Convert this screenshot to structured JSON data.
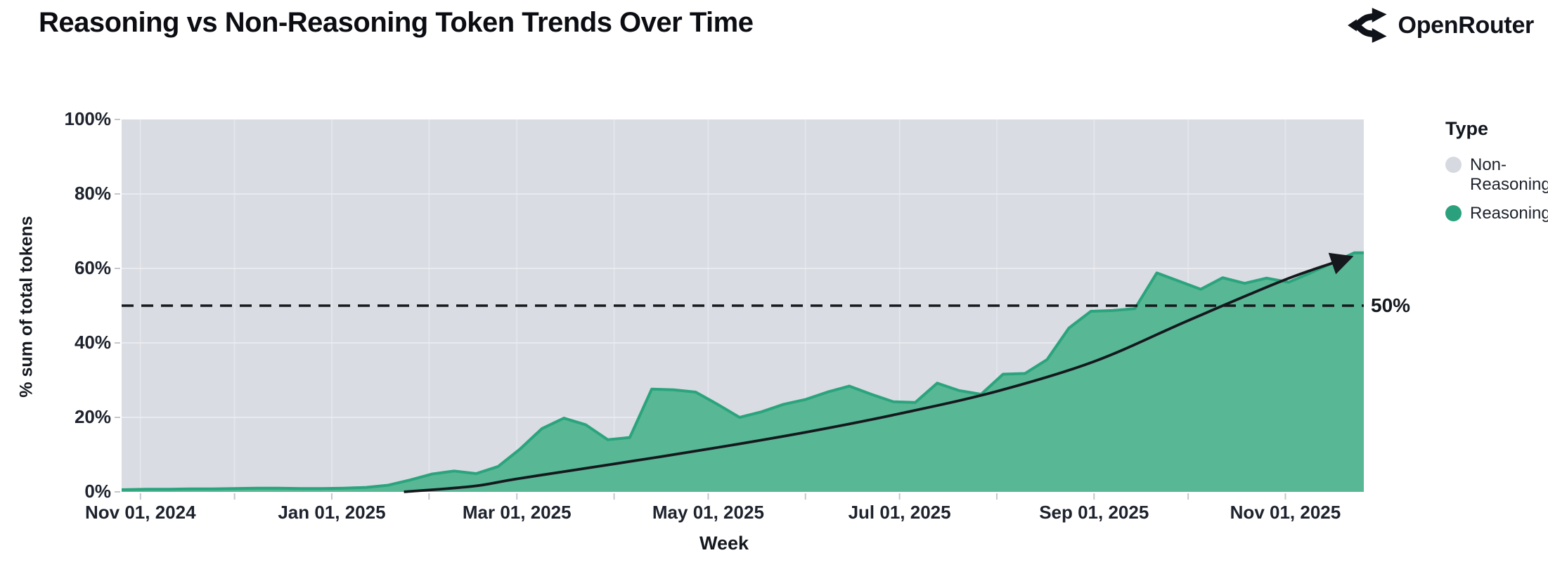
{
  "header": {
    "title": "Reasoning vs Non-Reasoning Token Trends Over Time",
    "brand": "OpenRouter"
  },
  "chart_data": {
    "type": "area",
    "stacked_percent": true,
    "title": "Reasoning vs Non-Reasoning Token Trends Over Time",
    "xlabel": "Week",
    "ylabel": "% sum of total tokens",
    "ylim": [
      0,
      100
    ],
    "x_domain": [
      "2024-10-26",
      "2025-11-26"
    ],
    "grid": true,
    "legend_position": "right",
    "legend": {
      "title": "Type",
      "entries": [
        {
          "label": "Non-Reasoning",
          "color": "#d6d9e0"
        },
        {
          "label": "Reasoning",
          "color": "#2aa17c"
        }
      ]
    },
    "y_ticks": [
      {
        "label": "0%",
        "value": 0
      },
      {
        "label": "20%",
        "value": 20
      },
      {
        "label": "40%",
        "value": 40
      },
      {
        "label": "60%",
        "value": 60
      },
      {
        "label": "80%",
        "value": 80
      },
      {
        "label": "100%",
        "value": 100
      }
    ],
    "x_ticks": [
      {
        "label": "Nov 01, 2024",
        "date": "2024-11-01"
      },
      {
        "label": "Jan 01, 2025",
        "date": "2025-01-01"
      },
      {
        "label": "Mar 01, 2025",
        "date": "2025-03-01"
      },
      {
        "label": "May 01, 2025",
        "date": "2025-05-01"
      },
      {
        "label": "Jul 01, 2025",
        "date": "2025-07-01"
      },
      {
        "label": "Sep 01, 2025",
        "date": "2025-09-01"
      },
      {
        "label": "Nov 01, 2025",
        "date": "2025-11-01"
      }
    ],
    "minor_tick_months": [
      "2024-11-01",
      "2024-12-01",
      "2025-01-01",
      "2025-02-01",
      "2025-03-01",
      "2025-04-01",
      "2025-05-01",
      "2025-06-01",
      "2025-07-01",
      "2025-08-01",
      "2025-09-01",
      "2025-10-01",
      "2025-11-01"
    ],
    "series": [
      {
        "name": "Reasoning",
        "start_date": "2024-10-27",
        "interval_days": 7,
        "unit": "% of total tokens",
        "values": [
          0.6,
          0.7,
          0.7,
          0.8,
          0.8,
          0.9,
          1.0,
          1.0,
          0.9,
          0.9,
          1.0,
          1.2,
          1.8,
          3.2,
          4.8,
          5.6,
          4.9,
          6.8,
          11.5,
          17.0,
          19.8,
          18.0,
          14.0,
          14.6,
          27.6,
          27.4,
          26.8,
          23.5,
          20.0,
          21.5,
          23.5,
          24.8,
          26.8,
          28.4,
          26.2,
          24.2,
          24.0,
          29.2,
          27.2,
          26.2,
          31.6,
          31.8,
          35.5,
          44.0,
          48.5,
          48.7,
          49.2,
          58.8,
          56.6,
          54.4,
          57.5,
          56.0,
          57.4,
          56.3,
          58.8,
          61.5,
          64.2
        ]
      },
      {
        "name": "Non-Reasoning",
        "note": "complement to 100% (area above the Reasoning series)"
      }
    ],
    "reference_line": {
      "value": 50,
      "label": "50%",
      "style": "dashed"
    },
    "trend_arrow": {
      "points": [
        [
          "2025-01-24",
          0
        ],
        [
          "2025-02-15",
          1.5
        ],
        [
          "2025-03-01",
          3.5
        ],
        [
          "2025-04-01",
          7.5
        ],
        [
          "2025-05-01",
          11.5
        ],
        [
          "2025-06-01",
          16
        ],
        [
          "2025-07-01",
          21
        ],
        [
          "2025-08-01",
          27
        ],
        [
          "2025-09-01",
          35
        ],
        [
          "2025-10-01",
          46
        ],
        [
          "2025-11-01",
          57
        ],
        [
          "2025-11-20",
          62.5
        ]
      ]
    },
    "colors": {
      "reasoning_fill": "#58b795",
      "reasoning_stroke": "#2ba47c",
      "non_reasoning_fill": "#d9dce3",
      "gridline": "#eceef2",
      "tick_mark": "#c3c7cf",
      "reference_line": "#15181d",
      "arrow": "#15181d",
      "text": "#1d222d"
    }
  }
}
